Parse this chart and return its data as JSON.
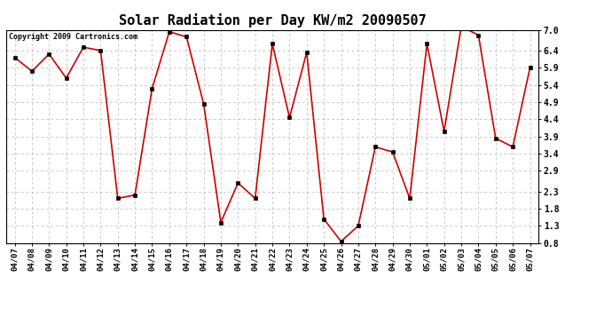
{
  "title": "Solar Radiation per Day KW/m2 20090507",
  "copyright": "Copyright 2009 Cartronics.com",
  "labels": [
    "04/07",
    "04/08",
    "04/09",
    "04/10",
    "04/11",
    "04/12",
    "04/13",
    "04/14",
    "04/15",
    "04/16",
    "04/17",
    "04/18",
    "04/19",
    "04/20",
    "04/21",
    "04/22",
    "04/23",
    "04/24",
    "04/25",
    "04/26",
    "04/27",
    "04/28",
    "04/29",
    "04/30",
    "05/01",
    "05/02",
    "05/03",
    "05/04",
    "05/05",
    "05/06",
    "05/07"
  ],
  "values": [
    6.2,
    5.8,
    6.3,
    5.6,
    6.5,
    6.4,
    2.1,
    2.2,
    5.3,
    6.95,
    6.8,
    4.85,
    1.4,
    2.55,
    2.1,
    6.6,
    4.45,
    6.35,
    1.5,
    0.85,
    1.3,
    3.6,
    3.45,
    2.1,
    6.6,
    4.05,
    7.1,
    6.85,
    3.85,
    3.6,
    5.9
  ],
  "line_color": "#cc0000",
  "marker_color": "#000000",
  "background_color": "#ffffff",
  "grid_color": "#b0b0b0",
  "ylim_min": 0.8,
  "ylim_max": 7.0,
  "yticks": [
    0.8,
    1.3,
    1.8,
    2.3,
    2.9,
    3.4,
    3.9,
    4.4,
    4.9,
    5.4,
    5.9,
    6.4,
    7.0
  ],
  "title_fontsize": 11,
  "copyright_fontsize": 6.0,
  "tick_fontsize": 6.5,
  "ytick_fontsize": 7.0
}
